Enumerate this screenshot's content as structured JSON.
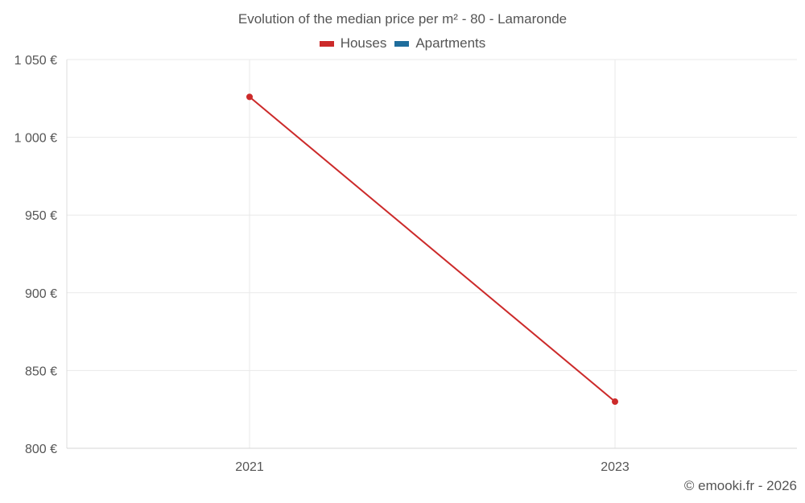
{
  "chart_data": {
    "type": "line",
    "title": "Evolution of the median price per m² - 80 - Lamaronde",
    "categories": [
      "2021",
      "2023"
    ],
    "series": [
      {
        "name": "Houses",
        "color": "#cc2a2a",
        "values": [
          1026,
          830
        ]
      },
      {
        "name": "Apartments",
        "color": "#1f6d9c",
        "values": [
          null,
          null
        ]
      }
    ],
    "ylim": [
      800,
      1050
    ],
    "yticks": [
      800,
      850,
      900,
      950,
      1000,
      1050
    ],
    "ytick_labels": [
      "800 €",
      "850 €",
      "900 €",
      "950 €",
      "1 000 €",
      "1 050 €"
    ],
    "legend_position": "top-center",
    "grid": true
  },
  "credit": "© emooki.fr - 2026"
}
